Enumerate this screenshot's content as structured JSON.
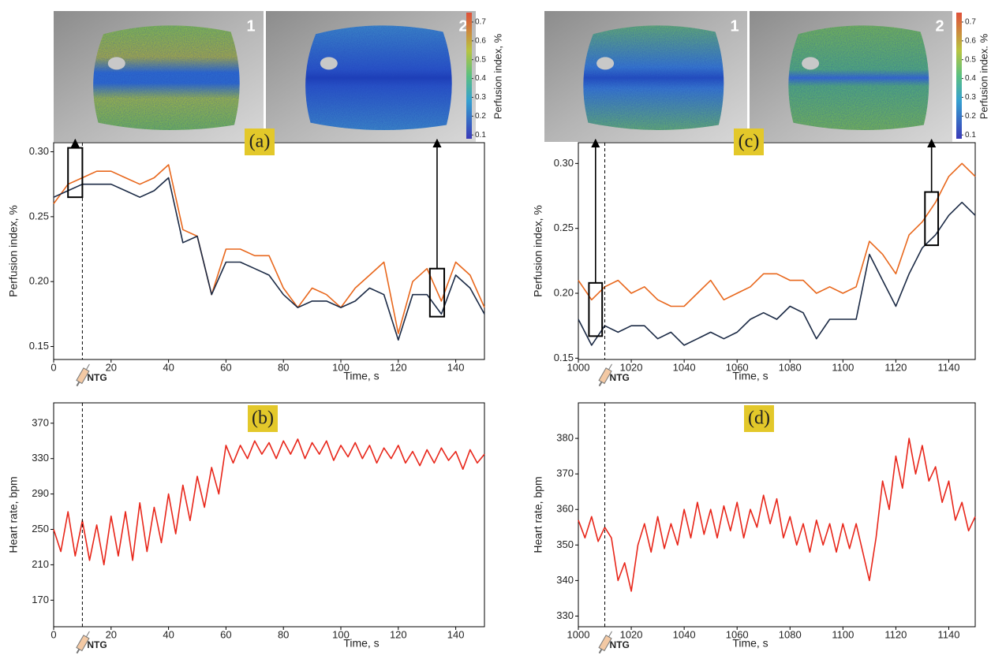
{
  "chart_data": [
    {
      "type": "line",
      "panel_label": "(a)",
      "ylabel": "Perfusion index, %",
      "xlabel": "Time, s",
      "images": {
        "labels": [
          "1",
          "2"
        ],
        "colorbar": {
          "label": "Perfusion index, %",
          "lim": [
            0.08,
            0.75
          ],
          "ticks": [
            0.1,
            0.2,
            0.3,
            0.4,
            0.5,
            0.6,
            0.7
          ]
        }
      },
      "marker": {
        "label": "NTG",
        "x": 10
      },
      "frames": [
        {
          "x": [
            5,
            10
          ],
          "y": [
            0.265,
            0.303
          ]
        },
        {
          "x": [
            131,
            136
          ],
          "y": [
            0.173,
            0.21
          ]
        }
      ],
      "xlim": [
        0,
        150
      ],
      "xticks": [
        0,
        20,
        40,
        60,
        80,
        100,
        120,
        140
      ],
      "ylim": [
        0.14,
        0.307
      ],
      "yticks": [
        0.15,
        {
          "value": 0.2,
          "label": "0.20"
        },
        0.25,
        {
          "value": 0.3,
          "label": "0.30"
        }
      ],
      "x": [
        0,
        5,
        10,
        15,
        20,
        25,
        30,
        35,
        40,
        45,
        50,
        55,
        60,
        65,
        70,
        75,
        80,
        85,
        90,
        95,
        100,
        105,
        110,
        115,
        120,
        125,
        130,
        135,
        140,
        145,
        150
      ],
      "series": [
        {
          "color": "#e8671c",
          "values": [
            0.26,
            0.275,
            0.28,
            0.285,
            0.285,
            0.28,
            0.275,
            0.28,
            0.29,
            0.24,
            0.235,
            0.19,
            0.225,
            0.225,
            0.22,
            0.22,
            0.195,
            0.18,
            0.195,
            0.19,
            0.18,
            0.195,
            0.205,
            0.215,
            0.16,
            0.2,
            0.21,
            0.185,
            0.215,
            0.205,
            0.18
          ]
        },
        {
          "color": "#1b2a45",
          "values": [
            0.265,
            0.27,
            0.275,
            0.275,
            0.275,
            0.27,
            0.265,
            0.27,
            0.28,
            0.23,
            0.235,
            0.19,
            0.215,
            0.215,
            0.21,
            0.205,
            0.19,
            0.18,
            0.185,
            0.185,
            0.18,
            0.185,
            0.195,
            0.19,
            0.155,
            0.19,
            0.19,
            0.175,
            0.205,
            0.195,
            0.175
          ]
        }
      ]
    },
    {
      "type": "line",
      "panel_label": "(b)",
      "ylabel": "Heart rate, bpm",
      "xlabel": "Time, s",
      "marker": {
        "label": "NTG",
        "x": 10
      },
      "xlim": [
        0,
        150
      ],
      "xticks": [
        0,
        20,
        40,
        60,
        80,
        100,
        120,
        140
      ],
      "ylim": [
        140,
        393
      ],
      "yticks": [
        170,
        210,
        250,
        290,
        330,
        370
      ],
      "x": [
        0,
        2.5,
        5,
        7.5,
        10,
        12.5,
        15,
        17.5,
        20,
        22.5,
        25,
        27.5,
        30,
        32.5,
        35,
        37.5,
        40,
        42.5,
        45,
        47.5,
        50,
        52.5,
        55,
        57.5,
        60,
        62.5,
        65,
        67.5,
        70,
        72.5,
        75,
        77.5,
        80,
        82.5,
        85,
        87.5,
        90,
        92.5,
        95,
        97.5,
        100,
        102.5,
        105,
        107.5,
        110,
        112.5,
        115,
        117.5,
        120,
        122.5,
        125,
        127.5,
        130,
        132.5,
        135,
        137.5,
        140,
        142.5,
        145,
        147.5,
        150
      ],
      "series": [
        {
          "color": "#e8261a",
          "values": [
            250,
            225,
            270,
            220,
            260,
            215,
            255,
            210,
            265,
            220,
            270,
            215,
            280,
            225,
            275,
            235,
            290,
            245,
            300,
            260,
            310,
            275,
            320,
            290,
            345,
            325,
            345,
            330,
            350,
            335,
            348,
            330,
            350,
            335,
            352,
            330,
            348,
            335,
            350,
            328,
            345,
            332,
            348,
            330,
            345,
            325,
            342,
            330,
            345,
            325,
            338,
            322,
            340,
            325,
            342,
            328,
            338,
            318,
            340,
            325,
            335
          ]
        }
      ]
    },
    {
      "type": "line",
      "panel_label": "(c)",
      "ylabel": "Perfusion index, %",
      "xlabel": "Time, s",
      "images": {
        "labels": [
          "1",
          "2"
        ],
        "colorbar": {
          "label": "Perfusion index. %",
          "lim": [
            0.08,
            0.75
          ],
          "ticks": [
            0.1,
            0.2,
            0.3,
            0.4,
            0.5,
            0.6,
            0.7
          ]
        }
      },
      "marker": {
        "label": "NTG",
        "x": 1010
      },
      "frames": [
        {
          "x": [
            1004,
            1009
          ],
          "y": [
            0.167,
            0.208
          ]
        },
        {
          "x": [
            1131,
            1136
          ],
          "y": [
            0.237,
            0.278
          ]
        }
      ],
      "xlim": [
        1000,
        1150
      ],
      "xticks": [
        1000,
        1020,
        1040,
        1060,
        1080,
        1100,
        1120,
        1140
      ],
      "ylim": [
        0.149,
        0.316
      ],
      "yticks": [
        0.15,
        {
          "value": 0.2,
          "label": "0.20"
        },
        0.25,
        {
          "value": 0.3,
          "label": "0.30"
        }
      ],
      "x": [
        1000,
        1005,
        1010,
        1015,
        1020,
        1025,
        1030,
        1035,
        1040,
        1045,
        1050,
        1055,
        1060,
        1065,
        1070,
        1075,
        1080,
        1085,
        1090,
        1095,
        1100,
        1105,
        1110,
        1115,
        1120,
        1125,
        1130,
        1135,
        1140,
        1145,
        1150
      ],
      "series": [
        {
          "color": "#e8671c",
          "values": [
            0.21,
            0.195,
            0.205,
            0.21,
            0.2,
            0.205,
            0.195,
            0.19,
            0.19,
            0.2,
            0.21,
            0.195,
            0.2,
            0.205,
            0.215,
            0.215,
            0.21,
            0.21,
            0.2,
            0.205,
            0.2,
            0.205,
            0.24,
            0.23,
            0.215,
            0.245,
            0.255,
            0.27,
            0.29,
            0.3,
            0.29
          ]
        },
        {
          "color": "#1b2a45",
          "values": [
            0.18,
            0.16,
            0.175,
            0.17,
            0.175,
            0.175,
            0.165,
            0.17,
            0.16,
            0.165,
            0.17,
            0.165,
            0.17,
            0.18,
            0.185,
            0.18,
            0.19,
            0.185,
            0.165,
            0.18,
            0.18,
            0.18,
            0.23,
            0.21,
            0.19,
            0.215,
            0.235,
            0.245,
            0.26,
            0.27,
            0.26
          ]
        }
      ]
    },
    {
      "type": "line",
      "panel_label": "(d)",
      "ylabel": "Heart rate, bpm",
      "xlabel": "Time, s",
      "marker": {
        "label": "NTG",
        "x": 1010
      },
      "xlim": [
        1000,
        1150
      ],
      "xticks": [
        1000,
        1020,
        1040,
        1060,
        1080,
        1100,
        1120,
        1140
      ],
      "ylim": [
        327,
        390
      ],
      "yticks": [
        330,
        340,
        350,
        360,
        370,
        380
      ],
      "x": [
        1000,
        1002.5,
        1005,
        1007.5,
        1010,
        1012.5,
        1015,
        1017.5,
        1020,
        1022.5,
        1025,
        1027.5,
        1030,
        1032.5,
        1035,
        1037.5,
        1040,
        1042.5,
        1045,
        1047.5,
        1050,
        1052.5,
        1055,
        1057.5,
        1060,
        1062.5,
        1065,
        1067.5,
        1070,
        1072.5,
        1075,
        1077.5,
        1080,
        1082.5,
        1085,
        1087.5,
        1090,
        1092.5,
        1095,
        1097.5,
        1100,
        1102.5,
        1105,
        1107.5,
        1110,
        1112.5,
        1115,
        1117.5,
        1120,
        1122.5,
        1125,
        1127.5,
        1130,
        1132.5,
        1135,
        1137.5,
        1140,
        1142.5,
        1145,
        1147.5,
        1150
      ],
      "series": [
        {
          "color": "#e8261a",
          "values": [
            357,
            352,
            358,
            351,
            355,
            352,
            340,
            345,
            337,
            350,
            356,
            348,
            358,
            349,
            356,
            350,
            360,
            352,
            362,
            353,
            360,
            352,
            361,
            354,
            362,
            352,
            360,
            355,
            364,
            356,
            363,
            352,
            358,
            350,
            356,
            348,
            357,
            350,
            356,
            348,
            356,
            349,
            356,
            348,
            340,
            352,
            368,
            360,
            375,
            366,
            380,
            370,
            378,
            368,
            372,
            362,
            368,
            357,
            362,
            354,
            358
          ]
        }
      ]
    }
  ]
}
